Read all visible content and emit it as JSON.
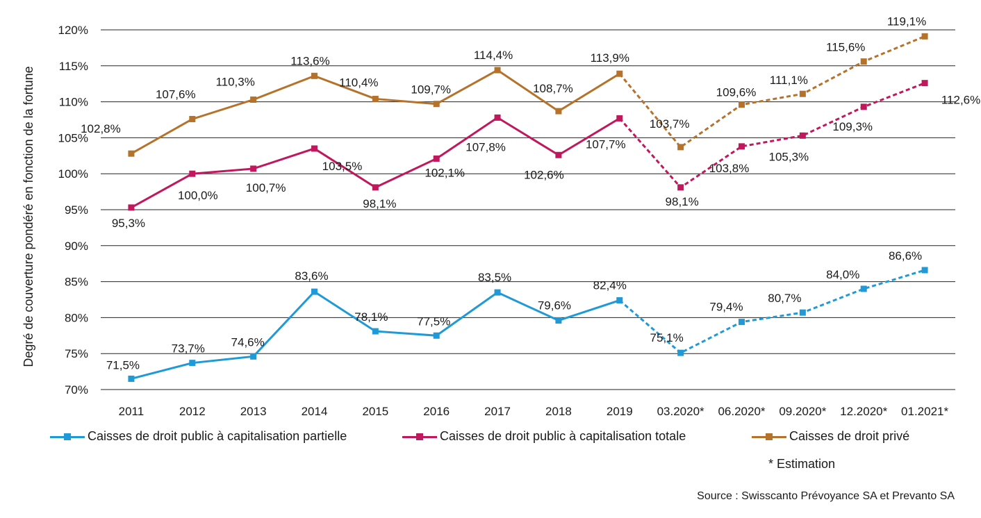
{
  "chart_data": {
    "type": "line",
    "ylabel": "Degré de couverture pondéré en fonction de la fortune",
    "xlabel": "",
    "categories": [
      "2011",
      "2012",
      "2013",
      "2014",
      "2015",
      "2016",
      "2017",
      "2018",
      "2019",
      "03.2020*",
      "06.2020*",
      "09.2020*",
      "12.2020*",
      "01.2021*"
    ],
    "estimated_from_index": 9,
    "ylim": [
      70,
      120
    ],
    "ytick_values": [
      70,
      75,
      80,
      85,
      90,
      95,
      100,
      105,
      110,
      115,
      120
    ],
    "ytick_labels": [
      "70%",
      "75%",
      "80%",
      "85%",
      "90%",
      "95%",
      "100%",
      "105%",
      "110%",
      "115%",
      "120%"
    ],
    "grid": true,
    "legend_position": "bottom",
    "series": [
      {
        "name": "Caisses de droit public à capitalisation partielle",
        "color": "#1f9ad6",
        "values": [
          71.5,
          73.7,
          74.6,
          83.6,
          78.1,
          77.5,
          83.5,
          79.6,
          82.4,
          75.1,
          79.4,
          80.7,
          84.0,
          86.6
        ],
        "labels": [
          "71,5%",
          "73,7%",
          "74,6%",
          "83,6%",
          "78,1%",
          "77,5%",
          "83,5%",
          "79,6%",
          "82,4%",
          "75,1%",
          "79,4%",
          "80,7%",
          "84,0%",
          "86,6%"
        ]
      },
      {
        "name": "Caisses de droit public à capitalisation totale",
        "color": "#c0175d",
        "values": [
          95.3,
          100.0,
          100.7,
          103.5,
          98.1,
          102.1,
          107.8,
          102.6,
          107.7,
          98.1,
          103.8,
          105.3,
          109.3,
          112.6
        ],
        "labels": [
          "95,3%",
          "100,0%",
          "100,7%",
          "103,5%",
          "98,1%",
          "102,1%",
          "107,8%",
          "102,6%",
          "107,7%",
          "98,1%",
          "103,8%",
          "105,3%",
          "109,3%",
          "112,6%"
        ]
      },
      {
        "name": "Caisses de droit privé",
        "color": "#b5722b",
        "values": [
          102.8,
          107.6,
          110.3,
          113.6,
          110.4,
          109.7,
          114.4,
          108.7,
          113.9,
          103.7,
          109.6,
          111.1,
          115.6,
          119.1
        ],
        "labels": [
          "102,8%",
          "107,6%",
          "110,3%",
          "113,6%",
          "110,4%",
          "109,7%",
          "114,4%",
          "108,7%",
          "113,9%",
          "103,7%",
          "109,6%",
          "111,1%",
          "115,6%",
          "119,1%"
        ]
      }
    ]
  },
  "note": "* Estimation",
  "source": "Source : Swisscanto Prévoyance SA et Prevanto SA"
}
